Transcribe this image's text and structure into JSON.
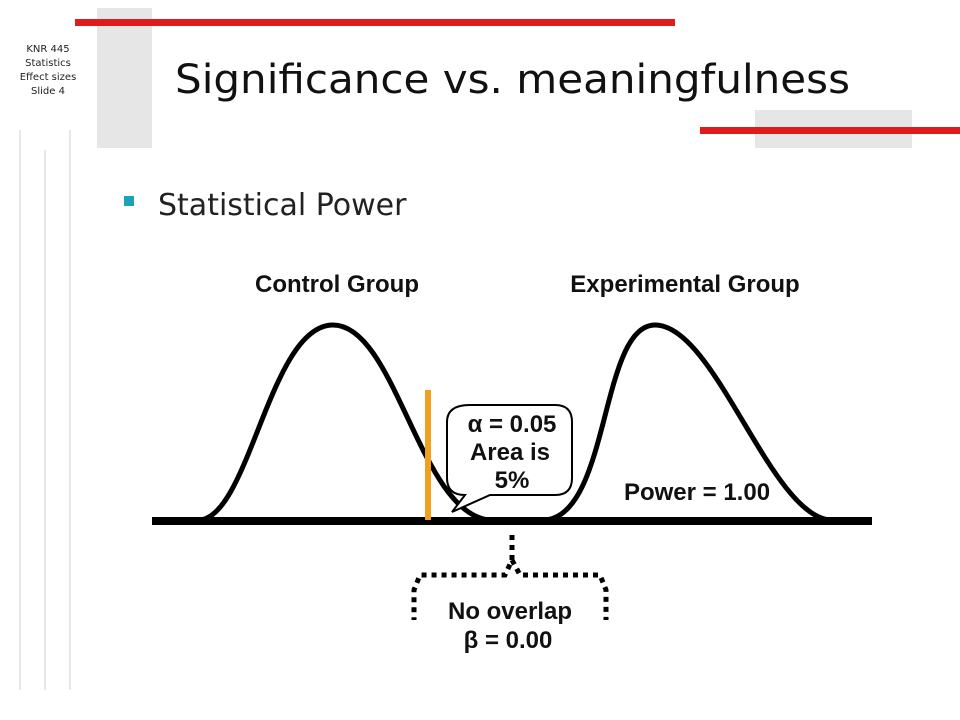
{
  "sidebar": {
    "lines": [
      "KNR 445",
      "Statistics",
      "Effect sizes",
      "Slide 4"
    ]
  },
  "title": "Significance vs. meaningfulness",
  "bullets": [
    "Statistical Power"
  ],
  "figure": {
    "labels": {
      "control": "Control Group",
      "experimental": "Experimental Group",
      "power": "Power = 1.00"
    },
    "callout": [
      "α = 0.05",
      "Area is",
      "5%"
    ],
    "overlap_note": [
      "No overlap",
      "β = 0.00"
    ]
  }
}
